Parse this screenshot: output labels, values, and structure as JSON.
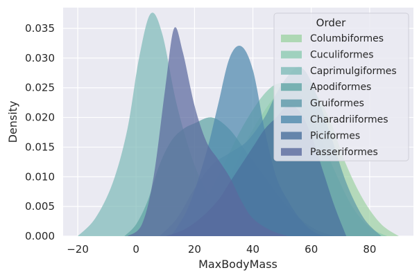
{
  "chart_data": {
    "type": "area",
    "xlabel": "MaxBodyMass",
    "ylabel": "Density",
    "xlim": [
      -25,
      95
    ],
    "ylim": [
      0,
      0.0385
    ],
    "grid": true,
    "x_ticks": [
      -20,
      0,
      20,
      40,
      60,
      80
    ],
    "y_ticks": [
      0.0,
      0.005,
      0.01,
      0.015,
      0.02,
      0.025,
      0.03,
      0.035
    ],
    "y_tick_labels": [
      "0.000",
      "0.005",
      "0.010",
      "0.015",
      "0.020",
      "0.025",
      "0.030",
      "0.035"
    ],
    "legend": {
      "title": "Order",
      "position": "top-right"
    },
    "colors": {
      "background": "#eaeaf2",
      "grid": "#ffffff",
      "Columbiformes": "#9fd3a4",
      "Cuculiformes": "#8ccbb0",
      "Caprimulgiformes": "#80bbb8",
      "Apodiformes": "#5fa5a4",
      "Gruiformes": "#5d98a8",
      "Charadriiformes": "#4f89ad",
      "Piciformes": "#4a6f9c",
      "Passeriformes": "#5b6a9e"
    },
    "series": [
      {
        "name": "Columbiformes",
        "x": [
          16,
          22,
          30,
          40,
          50,
          55,
          60,
          66,
          72,
          78,
          84,
          90
        ],
        "y": [
          0,
          0.002,
          0.008,
          0.018,
          0.025,
          0.0258,
          0.025,
          0.02,
          0.012,
          0.006,
          0.002,
          0
        ]
      },
      {
        "name": "Cuculiformes",
        "x": [
          14,
          20,
          28,
          36,
          44,
          50,
          56,
          62,
          68,
          74,
          80,
          86
        ],
        "y": [
          0,
          0.003,
          0.01,
          0.018,
          0.024,
          0.0258,
          0.024,
          0.018,
          0.011,
          0.005,
          0.0015,
          0
        ]
      },
      {
        "name": "Caprimulgiformes",
        "x": [
          -20,
          -14,
          -8,
          -3,
          1,
          5,
          9,
          14,
          20,
          26,
          32,
          38,
          44,
          50
        ],
        "y": [
          0,
          0.003,
          0.009,
          0.018,
          0.03,
          0.0375,
          0.034,
          0.022,
          0.012,
          0.006,
          0.003,
          0.0015,
          0.0005,
          0
        ]
      },
      {
        "name": "Apodiformes",
        "x": [
          -4,
          0,
          4,
          8,
          12,
          16,
          20,
          26,
          32,
          38,
          44,
          50,
          56,
          62,
          68
        ],
        "y": [
          0,
          0.002,
          0.006,
          0.012,
          0.016,
          0.018,
          0.019,
          0.02,
          0.018,
          0.014,
          0.01,
          0.006,
          0.003,
          0.001,
          0
        ]
      },
      {
        "name": "Gruiformes",
        "x": [
          8,
          14,
          20,
          26,
          32,
          38,
          44,
          48,
          52,
          56,
          60,
          66,
          72,
          78,
          84
        ],
        "y": [
          0,
          0.003,
          0.008,
          0.012,
          0.014,
          0.016,
          0.02,
          0.024,
          0.027,
          0.0285,
          0.026,
          0.018,
          0.009,
          0.003,
          0
        ]
      },
      {
        "name": "Charadriiformes",
        "x": [
          12,
          18,
          24,
          28,
          32,
          36,
          40,
          44,
          48,
          52,
          56,
          60,
          64
        ],
        "y": [
          0,
          0.005,
          0.014,
          0.022,
          0.03,
          0.032,
          0.028,
          0.018,
          0.01,
          0.006,
          0.003,
          0.001,
          0
        ]
      },
      {
        "name": "Piciformes",
        "x": [
          10,
          16,
          22,
          28,
          32,
          36,
          40,
          44,
          48,
          52,
          56,
          60,
          64,
          68,
          72
        ],
        "y": [
          0,
          0.001,
          0.003,
          0.006,
          0.009,
          0.012,
          0.015,
          0.018,
          0.02,
          0.022,
          0.021,
          0.017,
          0.011,
          0.005,
          0
        ]
      },
      {
        "name": "Passeriformes",
        "x": [
          -3,
          2,
          6,
          10,
          13,
          16,
          20,
          24,
          28,
          32,
          36,
          40,
          46,
          52
        ],
        "y": [
          0,
          0.002,
          0.01,
          0.025,
          0.035,
          0.031,
          0.022,
          0.016,
          0.013,
          0.01,
          0.006,
          0.003,
          0.001,
          0
        ]
      }
    ]
  }
}
